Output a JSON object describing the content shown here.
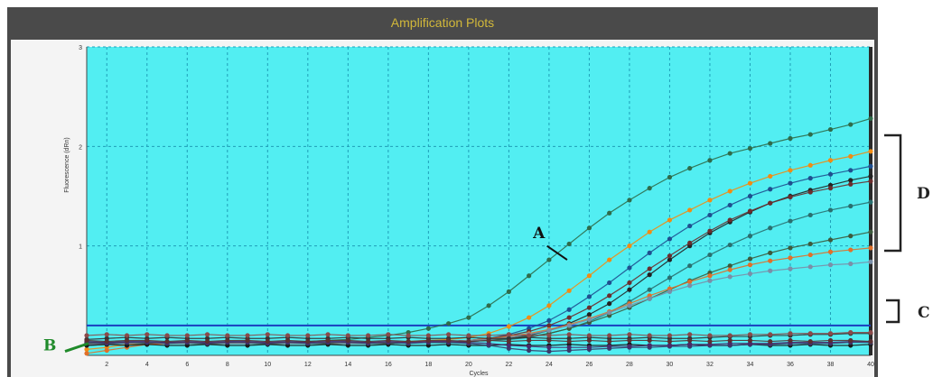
{
  "window": {
    "title": "Amplification Plots"
  },
  "colors": {
    "plot_bg": "#52eef2",
    "grid": "#1f9fb8",
    "threshold": "#1a3fbf",
    "annotation_green": "#1f8a2a",
    "panel": "#4a4a4a",
    "title_text": "#d2b83a"
  },
  "annotations": {
    "a_label": "A",
    "b_label": "B",
    "c_label": "C",
    "d_label": "D"
  },
  "chart_data": {
    "type": "line",
    "title": "",
    "xlabel": "Cycles",
    "ylabel": "Fluorescence (dRn)",
    "xlim": [
      1,
      40
    ],
    "ylim": [
      -0.1,
      3
    ],
    "grid": true,
    "legend": "none",
    "x_ticks": [
      "2",
      "4",
      "6",
      "8",
      "10",
      "12",
      "14",
      "16",
      "18",
      "20",
      "22",
      "24",
      "26",
      "28",
      "30",
      "32",
      "34",
      "36",
      "38",
      "40"
    ],
    "y_ticks": [
      "1",
      "2",
      "3"
    ],
    "threshold": 0.2,
    "x": [
      1,
      2,
      3,
      4,
      5,
      6,
      7,
      8,
      9,
      10,
      11,
      12,
      13,
      14,
      15,
      16,
      17,
      18,
      19,
      20,
      21,
      22,
      23,
      24,
      25,
      26,
      27,
      28,
      29,
      30,
      31,
      32,
      33,
      34,
      35,
      36,
      37,
      38,
      39,
      40
    ],
    "series": [
      {
        "color": "#2f6b4a",
        "values": [
          0.02,
          0.03,
          0.02,
          0.03,
          0.02,
          0.02,
          0.03,
          0.02,
          0.02,
          0.03,
          0.03,
          0.04,
          0.05,
          0.06,
          0.08,
          0.1,
          0.13,
          0.17,
          0.22,
          0.28,
          0.4,
          0.54,
          0.7,
          0.86,
          1.02,
          1.18,
          1.33,
          1.46,
          1.58,
          1.69,
          1.78,
          1.86,
          1.93,
          1.98,
          2.03,
          2.08,
          2.12,
          2.17,
          2.22,
          2.28
        ]
      },
      {
        "color": "#f08c14",
        "values": [
          -0.04,
          -0.02,
          0.01,
          0.02,
          0.02,
          0.03,
          0.02,
          0.02,
          0.03,
          0.02,
          0.02,
          0.03,
          0.02,
          0.02,
          0.03,
          0.03,
          0.04,
          0.05,
          0.06,
          0.08,
          0.12,
          0.19,
          0.28,
          0.4,
          0.55,
          0.7,
          0.86,
          1.0,
          1.14,
          1.26,
          1.36,
          1.46,
          1.55,
          1.63,
          1.7,
          1.76,
          1.81,
          1.86,
          1.9,
          1.95
        ]
      },
      {
        "color": "#1f4f8f",
        "values": [
          0.02,
          0.03,
          0.02,
          0.02,
          0.03,
          0.02,
          0.03,
          0.02,
          0.02,
          0.03,
          0.02,
          0.02,
          0.03,
          0.02,
          0.02,
          0.03,
          0.03,
          0.03,
          0.04,
          0.05,
          0.07,
          0.11,
          0.17,
          0.25,
          0.36,
          0.49,
          0.63,
          0.78,
          0.93,
          1.07,
          1.2,
          1.31,
          1.41,
          1.5,
          1.57,
          1.63,
          1.68,
          1.72,
          1.76,
          1.8
        ]
      },
      {
        "color": "#222222",
        "values": [
          0.01,
          0.02,
          0.03,
          0.02,
          0.02,
          0.03,
          0.02,
          0.02,
          0.03,
          0.02,
          0.02,
          0.03,
          0.02,
          0.02,
          0.03,
          0.02,
          0.03,
          0.03,
          0.03,
          0.04,
          0.05,
          0.07,
          0.1,
          0.15,
          0.22,
          0.31,
          0.42,
          0.56,
          0.71,
          0.86,
          1.0,
          1.13,
          1.24,
          1.34,
          1.43,
          1.5,
          1.56,
          1.61,
          1.66,
          1.7
        ]
      },
      {
        "color": "#6a2e2e",
        "values": [
          0.02,
          0.02,
          0.03,
          0.02,
          0.03,
          0.02,
          0.02,
          0.03,
          0.02,
          0.02,
          0.03,
          0.02,
          0.02,
          0.03,
          0.02,
          0.02,
          0.03,
          0.03,
          0.04,
          0.05,
          0.07,
          0.1,
          0.14,
          0.2,
          0.28,
          0.38,
          0.5,
          0.63,
          0.77,
          0.9,
          1.03,
          1.15,
          1.26,
          1.35,
          1.43,
          1.49,
          1.54,
          1.58,
          1.62,
          1.65
        ]
      },
      {
        "color": "#2a6f6f",
        "values": [
          0.0,
          0.01,
          0.02,
          0.02,
          0.03,
          0.02,
          0.02,
          0.03,
          0.02,
          0.02,
          0.03,
          0.02,
          0.02,
          0.03,
          0.02,
          0.02,
          0.03,
          0.03,
          0.03,
          0.04,
          0.05,
          0.06,
          0.08,
          0.12,
          0.17,
          0.24,
          0.33,
          0.44,
          0.56,
          0.68,
          0.8,
          0.91,
          1.01,
          1.1,
          1.18,
          1.25,
          1.31,
          1.36,
          1.4,
          1.44
        ]
      },
      {
        "color": "#3d5a3d",
        "values": [
          0.02,
          0.03,
          0.02,
          0.02,
          0.03,
          0.02,
          0.02,
          0.03,
          0.02,
          0.02,
          0.03,
          0.02,
          0.02,
          0.03,
          0.02,
          0.02,
          0.03,
          0.03,
          0.03,
          0.04,
          0.05,
          0.07,
          0.09,
          0.12,
          0.17,
          0.23,
          0.3,
          0.38,
          0.47,
          0.56,
          0.65,
          0.73,
          0.8,
          0.87,
          0.93,
          0.98,
          1.02,
          1.06,
          1.1,
          1.14
        ]
      },
      {
        "color": "#e0702a",
        "values": [
          -0.08,
          -0.05,
          -0.02,
          0.01,
          0.02,
          0.02,
          0.03,
          0.02,
          0.02,
          0.03,
          0.02,
          0.02,
          0.03,
          0.02,
          0.02,
          0.03,
          0.03,
          0.04,
          0.04,
          0.05,
          0.07,
          0.09,
          0.12,
          0.16,
          0.21,
          0.27,
          0.34,
          0.42,
          0.5,
          0.57,
          0.64,
          0.7,
          0.76,
          0.81,
          0.85,
          0.88,
          0.91,
          0.94,
          0.96,
          0.98
        ]
      },
      {
        "color": "#7a8fa8",
        "values": [
          0.01,
          0.02,
          0.02,
          0.03,
          0.02,
          0.02,
          0.03,
          0.02,
          0.02,
          0.03,
          0.02,
          0.02,
          0.03,
          0.02,
          0.02,
          0.03,
          0.03,
          0.03,
          0.04,
          0.05,
          0.06,
          0.08,
          0.11,
          0.15,
          0.2,
          0.26,
          0.33,
          0.4,
          0.47,
          0.54,
          0.6,
          0.65,
          0.69,
          0.72,
          0.75,
          0.77,
          0.79,
          0.81,
          0.82,
          0.84
        ]
      },
      {
        "color": "#333333",
        "values": [
          0.06,
          0.07,
          0.08,
          0.07,
          0.08,
          0.07,
          0.07,
          0.08,
          0.07,
          0.07,
          0.08,
          0.07,
          0.07,
          0.08,
          0.07,
          0.07,
          0.08,
          0.07,
          0.07,
          0.08,
          0.07,
          0.07,
          0.08,
          0.07,
          0.07,
          0.08,
          0.07,
          0.07,
          0.08,
          0.07,
          0.07,
          0.08,
          0.09,
          0.09,
          0.1,
          0.1,
          0.11,
          0.11,
          0.12,
          0.12
        ]
      },
      {
        "color": "#8a4a4a",
        "values": [
          0.1,
          0.11,
          0.1,
          0.11,
          0.1,
          0.1,
          0.11,
          0.1,
          0.1,
          0.11,
          0.1,
          0.1,
          0.11,
          0.1,
          0.1,
          0.11,
          0.1,
          0.1,
          0.11,
          0.1,
          0.1,
          0.11,
          0.1,
          0.1,
          0.11,
          0.1,
          0.1,
          0.11,
          0.1,
          0.1,
          0.11,
          0.1,
          0.1,
          0.11,
          0.11,
          0.12,
          0.12,
          0.12,
          0.13,
          0.13
        ]
      },
      {
        "color": "#1a1a1a",
        "values": [
          0.0,
          0.01,
          0.0,
          0.01,
          0.0,
          0.0,
          0.01,
          0.0,
          0.0,
          0.01,
          0.0,
          0.0,
          0.01,
          0.0,
          0.0,
          0.01,
          0.0,
          0.0,
          0.01,
          0.0,
          0.0,
          0.01,
          0.0,
          0.0,
          0.01,
          0.0,
          0.0,
          0.01,
          0.0,
          0.0,
          0.01,
          0.0,
          0.0,
          0.01,
          0.0,
          0.0,
          0.01,
          0.0,
          0.0,
          0.01
        ]
      },
      {
        "color": "#3a3a6a",
        "values": [
          0.03,
          0.02,
          0.03,
          0.03,
          0.02,
          0.03,
          0.02,
          0.03,
          0.03,
          0.02,
          0.03,
          0.02,
          0.03,
          0.03,
          0.02,
          0.03,
          0.02,
          0.03,
          0.03,
          0.02,
          0.0,
          -0.03,
          -0.05,
          -0.06,
          -0.05,
          -0.04,
          -0.03,
          -0.02,
          -0.02,
          -0.01,
          -0.01,
          0.0,
          0.0,
          0.01,
          0.01,
          0.02,
          0.02,
          0.02,
          0.03,
          0.03
        ]
      },
      {
        "color": "#4a2a6a",
        "values": [
          0.04,
          0.03,
          0.04,
          0.04,
          0.03,
          0.04,
          0.03,
          0.04,
          0.04,
          0.03,
          0.04,
          0.03,
          0.04,
          0.04,
          0.03,
          0.04,
          0.03,
          0.04,
          0.04,
          0.03,
          0.02,
          0.0,
          -0.01,
          -0.02,
          -0.02,
          -0.02,
          -0.01,
          -0.01,
          0.0,
          0.0,
          0.01,
          0.01,
          0.02,
          0.02,
          0.02,
          0.03,
          0.03,
          0.03,
          0.04,
          0.04
        ]
      },
      {
        "color": "#5a3030",
        "values": [
          0.05,
          0.04,
          0.05,
          0.05,
          0.04,
          0.05,
          0.04,
          0.05,
          0.05,
          0.04,
          0.05,
          0.04,
          0.05,
          0.05,
          0.04,
          0.05,
          0.04,
          0.05,
          0.05,
          0.04,
          0.05,
          0.04,
          0.05,
          0.05,
          0.04,
          0.05,
          0.04,
          0.05,
          0.05,
          0.04,
          0.05,
          0.04,
          0.05,
          0.05,
          0.04,
          0.05,
          0.04,
          0.05,
          0.05,
          0.04
        ]
      }
    ]
  }
}
